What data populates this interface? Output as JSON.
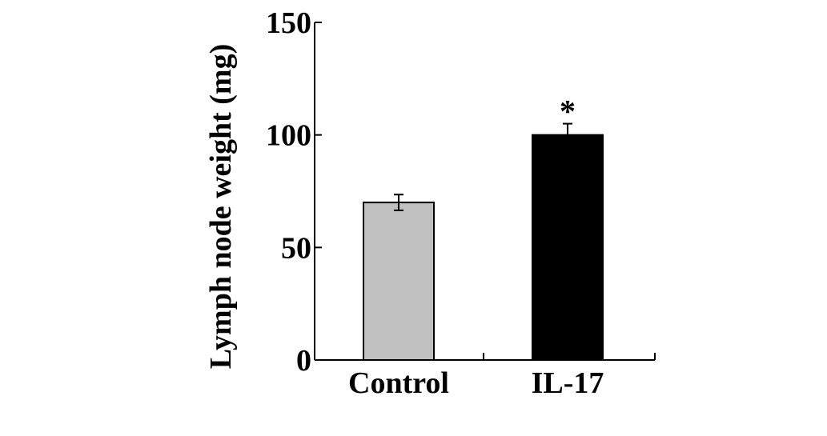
{
  "chart_data": {
    "type": "bar",
    "title": "",
    "xlabel": "",
    "ylabel": "Lymph node weight (mg)",
    "ylim": [
      0,
      150
    ],
    "yticks": [
      0,
      50,
      100,
      150
    ],
    "ytick_labels": [
      "0",
      "50",
      "100",
      "150"
    ],
    "categories": [
      "Control",
      "IL-17"
    ],
    "values": [
      70,
      100
    ],
    "errors": [
      3.5,
      5
    ],
    "bar_colors": [
      "#c0c0c0",
      "#000000"
    ],
    "annotations": [
      {
        "category": "IL-17",
        "text": "*"
      }
    ],
    "grid": false
  }
}
